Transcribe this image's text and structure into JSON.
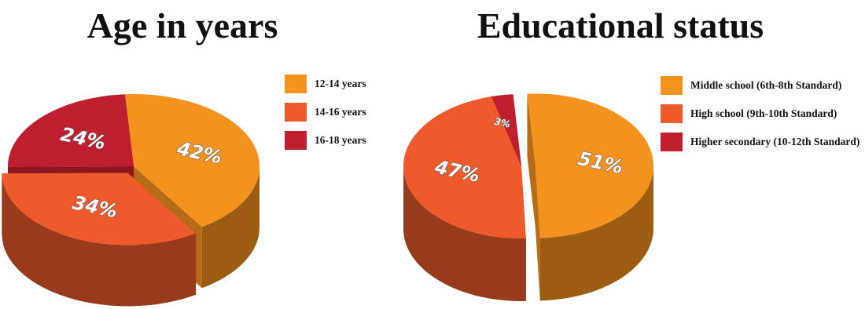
{
  "chart_data": [
    {
      "type": "pie",
      "title": "Age in years",
      "legend_position": "right",
      "categories": [
        "12-14 years",
        "14-16 years",
        "16-18 years"
      ],
      "values": [
        42,
        34,
        24
      ],
      "labels": [
        "42%",
        "34%",
        "24%"
      ],
      "colors": [
        "#F4921E",
        "#EE5A2B",
        "#BE1E2D"
      ]
    },
    {
      "type": "pie",
      "title": "Educational status",
      "legend_position": "right",
      "categories": [
        "Middle school (6th-8th Standard)",
        "High school (9th-10th Standard)",
        "Higher secondary (10-12th Standard)"
      ],
      "values": [
        51,
        47,
        3
      ],
      "labels": [
        "51%",
        "47%",
        "3%"
      ],
      "colors": [
        "#F4921E",
        "#EE5A2B",
        "#BE1E2D"
      ]
    }
  ]
}
